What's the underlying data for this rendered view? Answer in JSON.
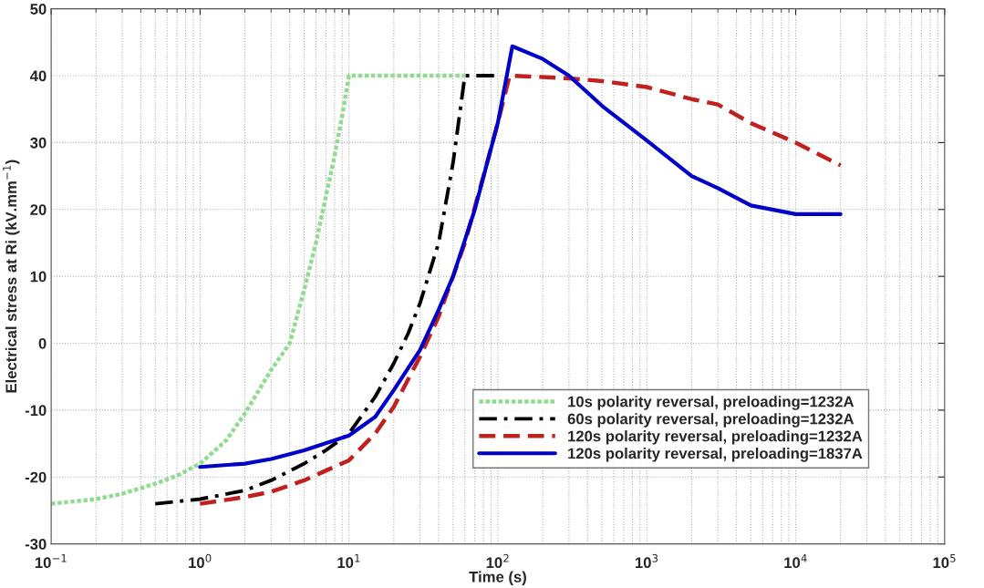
{
  "chart_data": {
    "type": "line",
    "xlabel": "Time (s)",
    "ylabel": "Electrical stress at Ri (kV.mm$^{−1}$)",
    "log": "x",
    "xlim": [
      0.1,
      100000
    ],
    "xticks": [
      {
        "value": 0.1,
        "label": "10$^{−1}$"
      },
      {
        "value": 1,
        "label": "10$^{0}$"
      },
      {
        "value": 10,
        "label": "10$^{1}$"
      },
      {
        "value": 100,
        "label": "10$^{2}$"
      },
      {
        "value": 1000,
        "label": "10$^{3}$"
      },
      {
        "value": 10000,
        "label": "10$^{4}$"
      },
      {
        "value": 100000,
        "label": "10$^{5}$"
      }
    ],
    "ylim": [
      -30,
      50
    ],
    "yticks": [
      -30,
      -20,
      -10,
      0,
      10,
      20,
      30,
      40,
      50
    ],
    "grid": true,
    "legend": "bottom right",
    "series": [
      {
        "name": "10s polarity reversal, preloading=1232A",
        "color": "#8fdc8f",
        "line_style": "dotted",
        "x": [
          0.1,
          0.2,
          0.3,
          0.5,
          0.7,
          1,
          1.5,
          2,
          3,
          4,
          5,
          6,
          7,
          8,
          9,
          10,
          60
        ],
        "values": [
          -24,
          -23.3,
          -22.5,
          -21,
          -19.8,
          -18,
          -14.5,
          -10.5,
          -4,
          0,
          8,
          15,
          22,
          28,
          34,
          40,
          40
        ]
      },
      {
        "name": "60s polarity reversal, preloading=1232A",
        "color": "#000000",
        "line_style": "dashdot",
        "x": [
          0.5,
          1,
          2,
          3,
          5,
          7,
          10,
          15,
          20,
          25,
          30,
          40,
          50,
          60,
          100
        ],
        "values": [
          -24,
          -23.3,
          -22,
          -20.5,
          -18,
          -16,
          -13.5,
          -8,
          -3,
          1.5,
          6,
          15,
          27,
          40,
          40
        ]
      },
      {
        "name": "120s polarity reversal, preloading=1232A",
        "color": "#c0201e",
        "line_style": "dashed",
        "x": [
          1,
          2,
          3,
          5,
          10,
          15,
          20,
          30,
          40,
          50,
          60,
          80,
          100,
          120,
          200,
          300,
          500,
          1000,
          2000,
          3000,
          5000,
          10000,
          20000
        ],
        "values": [
          -24,
          -23,
          -22.2,
          -20.5,
          -17.5,
          -13.5,
          -9.5,
          -2,
          4,
          10,
          15,
          25,
          33,
          40,
          39.8,
          39.6,
          39.2,
          38.3,
          36.5,
          35.7,
          32.9,
          30,
          26.6
        ]
      },
      {
        "name": "120s polarity reversal, preloading=1837A",
        "color": "#0000c8",
        "line_style": "solid",
        "x": [
          1,
          2,
          3,
          5,
          10,
          15,
          20,
          30,
          40,
          50,
          70,
          100,
          125,
          200,
          300,
          500,
          1000,
          2000,
          3000,
          5000,
          10000,
          20000
        ],
        "values": [
          -18.5,
          -18,
          -17.3,
          -16,
          -13.8,
          -11,
          -7,
          -1,
          5,
          10,
          20,
          33,
          44.4,
          42.5,
          40,
          35.5,
          30.3,
          25,
          23.2,
          20.6,
          19.3,
          19.3
        ]
      }
    ]
  }
}
